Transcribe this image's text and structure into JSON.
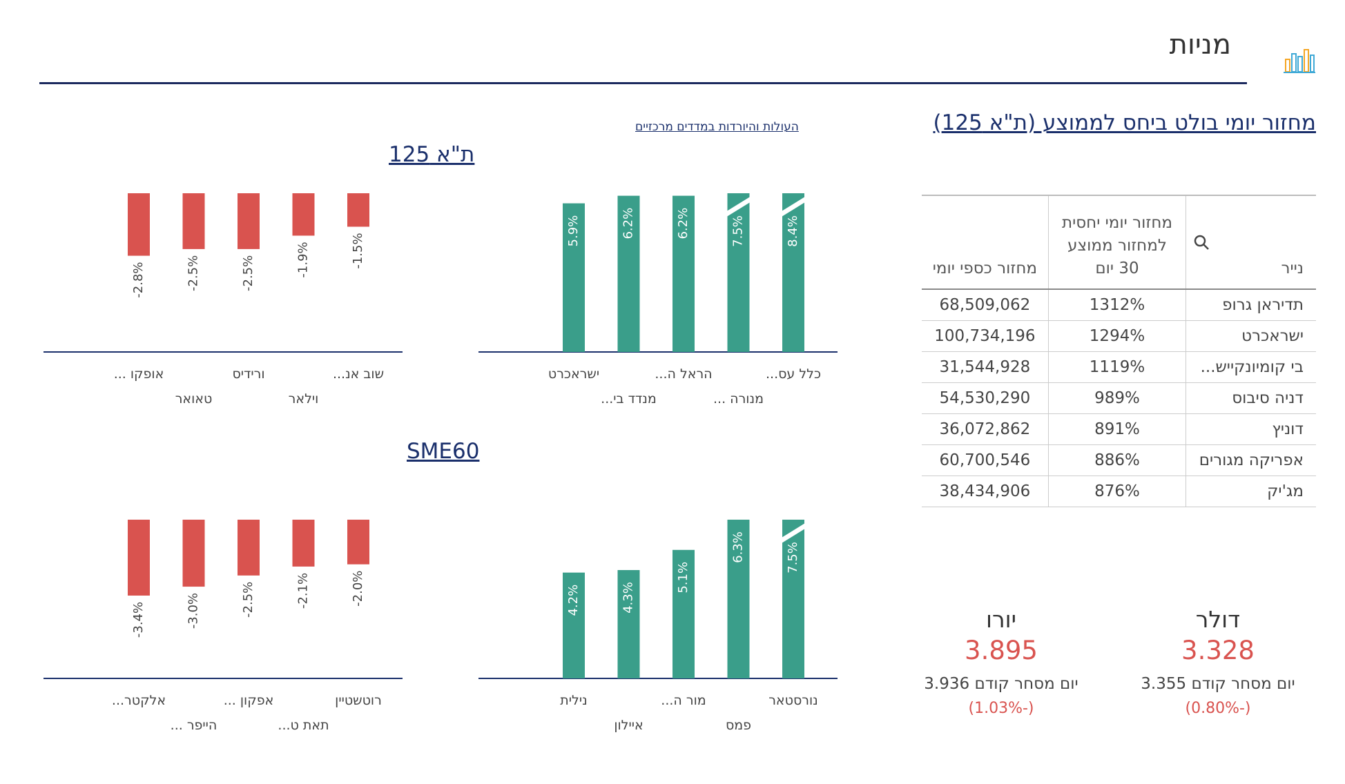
{
  "header": {
    "title": "מניות",
    "logo_icon": "bar-chart-logo-icon"
  },
  "table_section": {
    "title": "מחזור יומי בולט ביחס לממוצע (ת\"א 125)",
    "columns": {
      "security": "נייר",
      "relative": "מחזור יומי יחסית למחזור ממוצע 30 יום",
      "monetary": "מחזור כספי יומי"
    },
    "rows": [
      {
        "name": "תדיראן גרופ",
        "relative": "1312%",
        "monetary": "68,509,062"
      },
      {
        "name": "ישראכרט",
        "relative": "1294%",
        "monetary": "100,734,196"
      },
      {
        "name": "בי קומיונקייש...",
        "relative": "1119%",
        "monetary": "31,544,928"
      },
      {
        "name": "דניה סיבוס",
        "relative": "989%",
        "monetary": "54,530,290"
      },
      {
        "name": "דוניץ",
        "relative": "891%",
        "monetary": "36,072,862"
      },
      {
        "name": "אפריקה מגורים",
        "relative": "886%",
        "monetary": "60,700,546"
      },
      {
        "name": "מג'יק",
        "relative": "876%",
        "monetary": "38,434,906"
      }
    ]
  },
  "indices_link": "העולות והיורדות במדדים מרכזיים",
  "ta125": {
    "title": "ת\"א 125"
  },
  "sme60": {
    "title": "SME60"
  },
  "colors": {
    "up": "#3a9e8a",
    "down": "#d9534f",
    "navy": "#1a2f6b"
  },
  "chart_data": [
    {
      "type": "bar",
      "name": "ta125-gainers",
      "categories": [
        "כלל עס...",
        "מנורה ...",
        "הראל ה...",
        "מנדד בי...",
        "ישראכרט"
      ],
      "values": [
        8.4,
        7.5,
        6.2,
        6.2,
        5.9
      ],
      "labels": [
        "8.4%",
        "7.5%",
        "6.2%",
        "6.2%",
        "5.9%"
      ]
    },
    {
      "type": "bar",
      "name": "ta125-losers",
      "categories": [
        "שוב אנ...",
        "וילאר",
        "ורידיס",
        "טאואר",
        "אופקו ..."
      ],
      "values": [
        -1.5,
        -1.9,
        -2.5,
        -2.5,
        -2.8
      ],
      "labels": [
        "-1.5%",
        "-1.9%",
        "-2.5%",
        "-2.5%",
        "-2.8%"
      ]
    },
    {
      "type": "bar",
      "name": "sme60-gainers",
      "categories": [
        "נורסטאר",
        "פמס",
        "מור ה...",
        "איילון",
        "נילית"
      ],
      "values": [
        7.5,
        6.3,
        5.1,
        4.3,
        4.2
      ],
      "labels": [
        "7.5%",
        "6.3%",
        "5.1%",
        "4.3%",
        "4.2%"
      ]
    },
    {
      "type": "bar",
      "name": "sme60-losers",
      "categories": [
        "רוטשטיין",
        "תאת ט...",
        "אפקון ...",
        "הייפר ...",
        "אלקטר..."
      ],
      "values": [
        -2.0,
        -2.1,
        -2.5,
        -3.0,
        -3.4
      ],
      "labels": [
        "-2.0%",
        "-2.1%",
        "-2.5%",
        "-3.0%",
        "-3.4%"
      ]
    }
  ],
  "currencies": {
    "dollar": {
      "name": "דולר",
      "value": "3.328",
      "prev_label": "יום מסחר קודם",
      "prev_value": "3.355",
      "change": "(-0.80%)"
    },
    "euro": {
      "name": "יורו",
      "value": "3.895",
      "prev_label": "יום מסחר קודם",
      "prev_value": "3.936",
      "change": "(-1.03%)"
    }
  }
}
